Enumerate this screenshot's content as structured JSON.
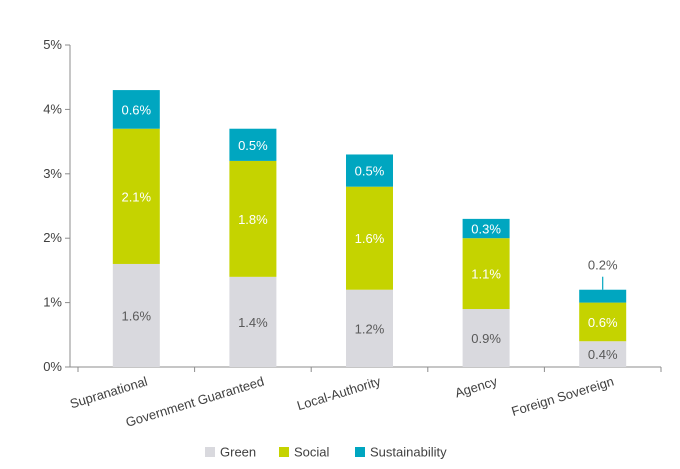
{
  "chart_data": {
    "type": "bar",
    "stacked": true,
    "categories": [
      "Supranational",
      "Government Guaranteed",
      "Local-Authority",
      "Agency",
      "Foreign Sovereign"
    ],
    "series": [
      {
        "name": "Green",
        "values": [
          1.6,
          1.4,
          1.2,
          0.9,
          0.4
        ],
        "labels": [
          "1.6%",
          "1.4%",
          "1.2%",
          "0.9%",
          "0.4%"
        ],
        "color": "#d9d9de",
        "label_color": "#595959"
      },
      {
        "name": "Social",
        "values": [
          2.1,
          1.8,
          1.6,
          1.1,
          0.6
        ],
        "labels": [
          "2.1%",
          "1.8%",
          "1.6%",
          "1.1%",
          "0.6%"
        ],
        "color": "#c5d300",
        "label_color": "#ffffff"
      },
      {
        "name": "Sustainability",
        "values": [
          0.6,
          0.5,
          0.5,
          0.3,
          0.2
        ],
        "labels": [
          "0.6%",
          "0.5%",
          "0.5%",
          "0.3%",
          "0.2%"
        ],
        "color": "#00a6c0",
        "label_color": "#ffffff"
      }
    ],
    "ylim": [
      0,
      5
    ],
    "yticks": [
      "0%",
      "1%",
      "2%",
      "3%",
      "4%",
      "5%"
    ],
    "legend_position": "bottom",
    "grid": false
  }
}
